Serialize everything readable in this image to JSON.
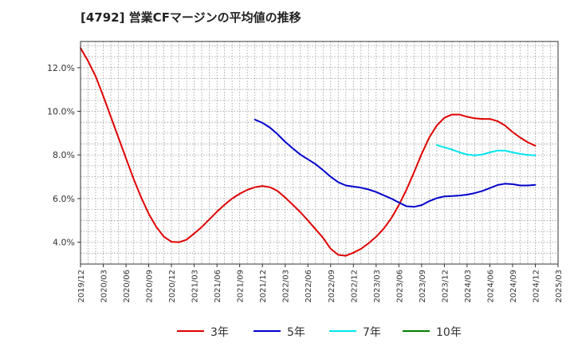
{
  "chart_data": {
    "type": "line",
    "title": "[4792]  営業CFマージンの平均値の推移",
    "xlabel": "",
    "ylabel": "",
    "ylim": [
      3.0,
      13.2
    ],
    "yticks": [
      4.0,
      6.0,
      8.0,
      10.0,
      12.0
    ],
    "ytick_labels": [
      "4.0%",
      "6.0%",
      "8.0%",
      "10.0%",
      "12.0%"
    ],
    "x_start": "2019-12",
    "x_end": "2025-03",
    "xtick_labels": [
      "2019/12",
      "2020/03",
      "2020/06",
      "2020/09",
      "2020/12",
      "2021/03",
      "2021/06",
      "2021/09",
      "2021/12",
      "2022/03",
      "2022/06",
      "2022/09",
      "2022/12",
      "2023/03",
      "2023/06",
      "2023/09",
      "2023/12",
      "2024/03",
      "2024/06",
      "2024/09",
      "2024/12",
      "2025/03"
    ],
    "grid": true,
    "legend_position": "bottom",
    "series": [
      {
        "name": "3年",
        "color": "#e00000",
        "x": [
          "2019-12",
          "2020-01",
          "2020-02",
          "2020-03",
          "2020-04",
          "2020-05",
          "2020-06",
          "2020-07",
          "2020-08",
          "2020-09",
          "2020-10",
          "2020-11",
          "2020-12",
          "2021-01",
          "2021-02",
          "2021-03",
          "2021-04",
          "2021-05",
          "2021-06",
          "2021-07",
          "2021-08",
          "2021-09",
          "2021-10",
          "2021-11",
          "2021-12",
          "2022-01",
          "2022-02",
          "2022-03",
          "2022-04",
          "2022-05",
          "2022-06",
          "2022-07",
          "2022-08",
          "2022-09",
          "2022-10",
          "2022-11",
          "2022-12",
          "2023-01",
          "2023-02",
          "2023-03",
          "2023-04",
          "2023-05",
          "2023-06",
          "2023-07",
          "2023-08",
          "2023-09",
          "2023-10",
          "2023-11",
          "2023-12",
          "2024-01",
          "2024-02",
          "2024-03",
          "2024-04",
          "2024-05",
          "2024-06",
          "2024-07",
          "2024-08",
          "2024-09",
          "2024-10",
          "2024-11",
          "2024-12"
        ],
        "values": [
          12.9,
          12.3,
          11.6,
          10.7,
          9.75,
          8.8,
          7.85,
          6.9,
          6.05,
          5.3,
          4.7,
          4.25,
          4.02,
          4.0,
          4.12,
          4.4,
          4.7,
          5.05,
          5.4,
          5.72,
          6.0,
          6.22,
          6.4,
          6.52,
          6.58,
          6.52,
          6.35,
          6.05,
          5.72,
          5.38,
          5.0,
          4.6,
          4.2,
          3.7,
          3.42,
          3.38,
          3.52,
          3.7,
          3.95,
          4.25,
          4.62,
          5.1,
          5.7,
          6.4,
          7.2,
          8.05,
          8.8,
          9.35,
          9.7,
          9.85,
          9.85,
          9.75,
          9.68,
          9.65,
          9.65,
          9.55,
          9.35,
          9.05,
          8.8,
          8.58,
          8.42
        ]
      },
      {
        "name": "5年",
        "color": "#0000cc",
        "x": [
          "2021-11",
          "2021-12",
          "2022-01",
          "2022-02",
          "2022-03",
          "2022-04",
          "2022-05",
          "2022-06",
          "2022-07",
          "2022-08",
          "2022-09",
          "2022-10",
          "2022-11",
          "2022-12",
          "2023-01",
          "2023-02",
          "2023-03",
          "2023-04",
          "2023-05",
          "2023-06",
          "2023-07",
          "2023-08",
          "2023-09",
          "2023-10",
          "2023-11",
          "2023-12",
          "2024-01",
          "2024-02",
          "2024-03",
          "2024-04",
          "2024-05",
          "2024-06",
          "2024-07",
          "2024-08",
          "2024-09",
          "2024-10",
          "2024-11",
          "2024-12"
        ],
        "values": [
          9.62,
          9.47,
          9.25,
          8.95,
          8.6,
          8.3,
          8.02,
          7.8,
          7.58,
          7.3,
          7.0,
          6.75,
          6.6,
          6.55,
          6.5,
          6.42,
          6.3,
          6.15,
          6.0,
          5.82,
          5.65,
          5.62,
          5.7,
          5.88,
          6.02,
          6.1,
          6.12,
          6.14,
          6.18,
          6.25,
          6.35,
          6.48,
          6.62,
          6.68,
          6.66,
          6.6,
          6.6,
          6.63
        ]
      },
      {
        "name": "7年",
        "color": "#00e5ee",
        "x": [
          "2023-11",
          "2023-12",
          "2024-01",
          "2024-02",
          "2024-03",
          "2024-04",
          "2024-05",
          "2024-06",
          "2024-07",
          "2024-08",
          "2024-09",
          "2024-10",
          "2024-11",
          "2024-12"
        ],
        "values": [
          8.45,
          8.35,
          8.25,
          8.12,
          8.02,
          7.98,
          8.02,
          8.12,
          8.2,
          8.2,
          8.12,
          8.05,
          8.0,
          7.98
        ]
      },
      {
        "name": "10年",
        "color": "#008000",
        "x": [],
        "values": []
      }
    ]
  }
}
